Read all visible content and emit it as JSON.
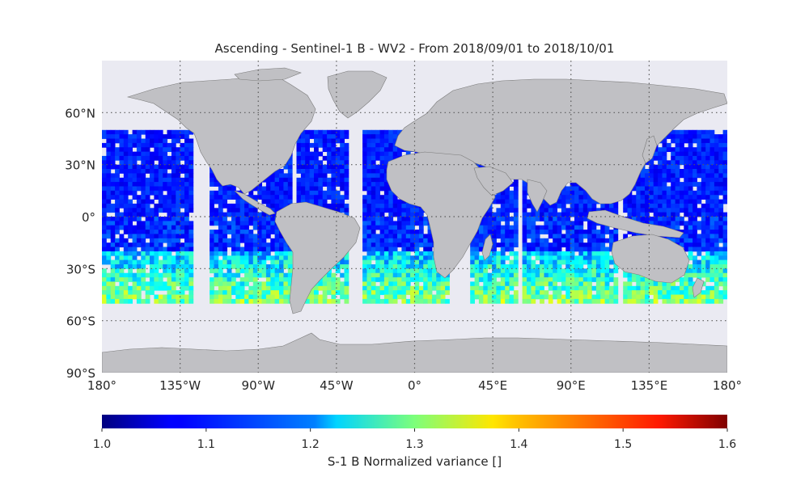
{
  "title": "Ascending - Sentinel-1 B - WV2 - From 2018/09/01 to 2018/10/01",
  "lat_ticks": [
    "60°N",
    "30°N",
    "0°",
    "30°S",
    "60°S",
    "90°S"
  ],
  "lon_ticks": [
    "180°",
    "135°W",
    "90°W",
    "45°W",
    "0°",
    "45°E",
    "90°E",
    "135°E",
    "180°"
  ],
  "colorbar": {
    "label": "S-1 B Normalized variance []",
    "min": 1.0,
    "max": 1.6,
    "ticks": [
      "1.0",
      "1.1",
      "1.2",
      "1.3",
      "1.4",
      "1.5",
      "1.6"
    ],
    "colormap": "jet"
  },
  "colors": {
    "ocean_background": "#eaeaf2",
    "land": "#c0c0c4",
    "coastline": "#7a7a7a",
    "grid": "#5a5a5a"
  }
}
